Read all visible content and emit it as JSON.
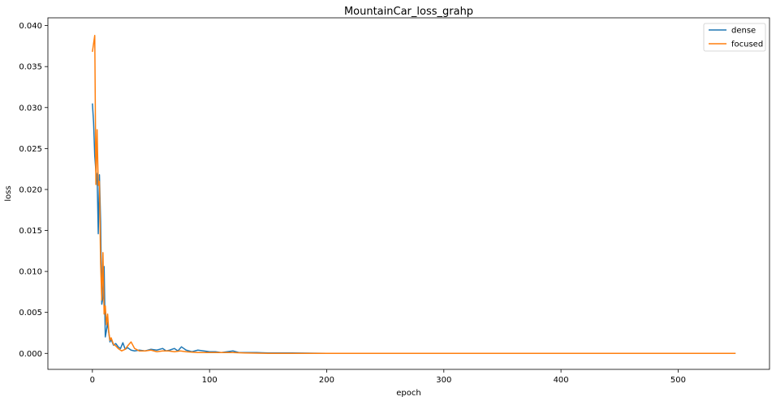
{
  "chart_data": {
    "type": "line",
    "title": "MountainCar_loss_grahp",
    "xlabel": "epoch",
    "ylabel": "loss",
    "xlim": [
      -38,
      578
    ],
    "ylim": [
      -0.00195,
      0.04095
    ],
    "xticks": [
      0,
      100,
      200,
      300,
      400,
      500
    ],
    "yticks": [
      0.0,
      0.005,
      0.01,
      0.015,
      0.02,
      0.025,
      0.03,
      0.035,
      0.04
    ],
    "ytick_labels": [
      "0.000",
      "0.005",
      "0.010",
      "0.015",
      "0.020",
      "0.025",
      "0.030",
      "0.035",
      "0.040"
    ],
    "grid": false,
    "legend_position": "top-right",
    "series": [
      {
        "name": "dense",
        "color": "#1f77b4",
        "points": [
          [
            0,
            0.0305
          ],
          [
            1,
            0.0282
          ],
          [
            2,
            0.0241
          ],
          [
            3,
            0.0222
          ],
          [
            4,
            0.0218
          ],
          [
            5,
            0.0146
          ],
          [
            6,
            0.0218
          ],
          [
            7,
            0.0161
          ],
          [
            8,
            0.006
          ],
          [
            9,
            0.0068
          ],
          [
            10,
            0.0106
          ],
          [
            11,
            0.002
          ],
          [
            12,
            0.0028
          ],
          [
            13,
            0.0038
          ],
          [
            14,
            0.0025
          ],
          [
            15,
            0.0014
          ],
          [
            16,
            0.0017
          ],
          [
            18,
            0.001
          ],
          [
            20,
            0.0012
          ],
          [
            22,
            0.0008
          ],
          [
            24,
            0.0006
          ],
          [
            26,
            0.0013
          ],
          [
            28,
            0.0005
          ],
          [
            30,
            0.0007
          ],
          [
            33,
            0.0004
          ],
          [
            36,
            0.0003
          ],
          [
            40,
            0.0004
          ],
          [
            45,
            0.0003
          ],
          [
            50,
            0.0005
          ],
          [
            55,
            0.0004
          ],
          [
            60,
            0.0006
          ],
          [
            63,
            0.0003
          ],
          [
            66,
            0.0004
          ],
          [
            70,
            0.0006
          ],
          [
            73,
            0.0003
          ],
          [
            76,
            0.0008
          ],
          [
            80,
            0.0004
          ],
          [
            85,
            0.0002
          ],
          [
            90,
            0.0004
          ],
          [
            95,
            0.0003
          ],
          [
            100,
            0.0002
          ],
          [
            105,
            0.0002
          ],
          [
            110,
            0.0001
          ],
          [
            115,
            0.0002
          ],
          [
            120,
            0.0003
          ],
          [
            125,
            0.0001
          ],
          [
            130,
            0.0001
          ],
          [
            140,
            0.0001
          ],
          [
            150,
            5e-05
          ],
          [
            170,
            5e-05
          ],
          [
            200,
            0.0
          ],
          [
            250,
            0.0
          ],
          [
            300,
            0.0
          ],
          [
            350,
            0.0
          ],
          [
            400,
            0.0
          ],
          [
            450,
            0.0
          ],
          [
            500,
            0.0
          ],
          [
            549,
            0.0
          ]
        ]
      },
      {
        "name": "focused",
        "color": "#ff7f0e",
        "points": [
          [
            0,
            0.0368
          ],
          [
            1,
            0.0378
          ],
          [
            2,
            0.0388
          ],
          [
            3,
            0.0206
          ],
          [
            4,
            0.0273
          ],
          [
            5,
            0.0205
          ],
          [
            6,
            0.021
          ],
          [
            7,
            0.011
          ],
          [
            8,
            0.0065
          ],
          [
            9,
            0.0123
          ],
          [
            10,
            0.0048
          ],
          [
            11,
            0.0058
          ],
          [
            12,
            0.0035
          ],
          [
            13,
            0.0048
          ],
          [
            14,
            0.0026
          ],
          [
            15,
            0.0016
          ],
          [
            16,
            0.0019
          ],
          [
            18,
            0.0011
          ],
          [
            20,
            0.0009
          ],
          [
            22,
            0.0006
          ],
          [
            25,
            0.0003
          ],
          [
            28,
            0.0005
          ],
          [
            30,
            0.0009
          ],
          [
            33,
            0.0014
          ],
          [
            36,
            0.0006
          ],
          [
            40,
            0.0003
          ],
          [
            45,
            0.0003
          ],
          [
            50,
            0.0004
          ],
          [
            55,
            0.0002
          ],
          [
            60,
            0.0003
          ],
          [
            65,
            0.0003
          ],
          [
            70,
            0.0002
          ],
          [
            75,
            0.0003
          ],
          [
            80,
            0.0002
          ],
          [
            90,
            0.0001
          ],
          [
            100,
            0.0001
          ],
          [
            110,
            0.0001
          ],
          [
            120,
            0.0001
          ],
          [
            130,
            5e-05
          ],
          [
            150,
            0.0
          ],
          [
            200,
            0.0
          ],
          [
            250,
            0.0
          ],
          [
            300,
            0.0
          ],
          [
            350,
            0.0
          ],
          [
            400,
            0.0
          ],
          [
            450,
            0.0
          ],
          [
            500,
            0.0
          ],
          [
            549,
            0.0
          ]
        ]
      }
    ]
  }
}
